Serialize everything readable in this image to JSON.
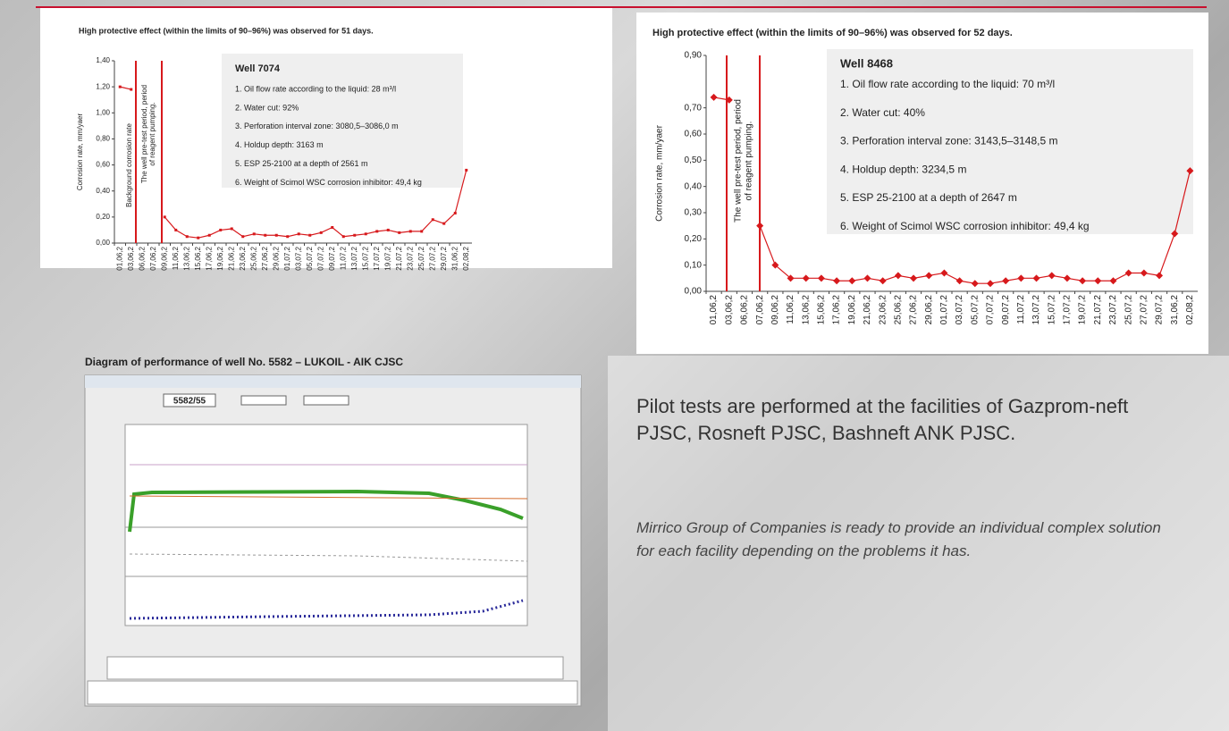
{
  "chart_data": [
    {
      "type": "line",
      "title": "High protective effect (within the limits of 90–96%) was observed for 51 days.",
      "ylabel": "Corrosion rate, mm/yaer",
      "annotations": [
        "Background corrosion rate",
        "The well pre-test period, period",
        "of reagent pumping."
      ],
      "box": {
        "title": "Well 7074",
        "lines": [
          "1. Oil flow rate according to the liquid: 28 m³/l",
          "2. Water cut: 92%",
          "3. Perforation interval zone: 3080,5–3086,0 m",
          "4. Holdup depth: 3163 m",
          "5. ESP 25-2100 at a depth of 2561 m",
          "6. Weight of Scimol WSC corrosion inhibitor: 49,4 kg"
        ]
      },
      "categories": [
        "01,06,2",
        "03,06,2",
        "06,06,2",
        "07,06,2",
        "09,06,2",
        "11,06,2",
        "13,06,2",
        "15,06,2",
        "17,06,2",
        "19,06,2",
        "21,06,2",
        "23,06,2",
        "25,06,2",
        "27,06,2",
        "29,06,2",
        "01,07,2",
        "03,07,2",
        "05,07,2",
        "07,07,2",
        "09,07,2",
        "11,07,2",
        "13,07,2",
        "15,07,2",
        "17,07,2",
        "19,07,2",
        "21,07,2",
        "23,07,2",
        "25,07,2",
        "27,07,2",
        "29,07,2",
        "31,06,2",
        "02,08,2"
      ],
      "values": [
        1.2,
        1.18,
        null,
        null,
        0.2,
        0.1,
        0.05,
        0.04,
        0.06,
        0.1,
        0.11,
        0.05,
        0.07,
        0.06,
        0.06,
        0.05,
        0.07,
        0.06,
        0.08,
        0.12,
        0.05,
        0.06,
        0.07,
        0.09,
        0.1,
        0.08,
        0.09,
        0.09,
        0.18,
        0.15,
        0.23,
        0.56
      ],
      "color": "#d7191c",
      "marker": "square",
      "ylim": [
        0,
        1.4
      ],
      "yticks": [
        {
          "value": 0,
          "label": "0,00"
        },
        {
          "value": 0.2,
          "label": "0,20"
        },
        {
          "value": 0.4,
          "label": "0,40"
        },
        {
          "value": 0.6,
          "label": "0,60"
        },
        {
          "value": 0.8,
          "label": "0,80"
        },
        {
          "value": 1,
          "label": "1,00"
        },
        {
          "value": 1.2,
          "label": "1,20"
        },
        {
          "value": 1.4,
          "label": "1,40"
        }
      ]
    },
    {
      "type": "line",
      "title": "High protective effect (within the limits of 90–96%) was observed for 52 days.",
      "ylabel": "Corrosion rate, mm/yaer",
      "annotations": [
        "The well pre-test period, period",
        "of reagent pumping."
      ],
      "box": {
        "title": "Well 8468",
        "lines": [
          "1. Oil flow rate according to the liquid: 70 m³/l",
          "2. Water cut: 40%",
          "3. Perforation interval zone: 3143,5–3148,5 m",
          "4. Holdup depth: 3234,5 m",
          "5. ESP 25-2100 at a depth of 2647 m",
          "6. Weight of Scimol WSC corrosion inhibitor: 49,4 kg"
        ]
      },
      "categories": [
        "01,06,2",
        "03,06,2",
        "06,06,2",
        "07,06,2",
        "09,06,2",
        "11,06,2",
        "13,06,2",
        "15,06,2",
        "17,06,2",
        "19,06,2",
        "21,06,2",
        "23,06,2",
        "25,06,2",
        "27,06,2",
        "29,06,2",
        "01,07,2",
        "03,07,2",
        "05,07,2",
        "07,07,2",
        "09,07,2",
        "11,07,2",
        "13,07,2",
        "15,07,2",
        "17,07,2",
        "19,07,2",
        "21,07,2",
        "23,07,2",
        "25,07,2",
        "27,07,2",
        "29,07,2",
        "31,06,2",
        "02,08,2"
      ],
      "values": [
        0.74,
        0.73,
        null,
        0.25,
        0.1,
        0.05,
        0.05,
        0.05,
        0.04,
        0.04,
        0.05,
        0.04,
        0.06,
        0.05,
        0.06,
        0.07,
        0.04,
        0.03,
        0.03,
        0.04,
        0.05,
        0.05,
        0.06,
        0.05,
        0.04,
        0.04,
        0.04,
        0.07,
        0.07,
        0.06,
        0.22,
        0.46
      ],
      "color": "#d7191c",
      "marker": "diamond",
      "ylim": [
        0,
        0.9
      ],
      "yticks": [
        {
          "value": 0,
          "label": "0,00"
        },
        {
          "value": 0.1,
          "label": "0,10"
        },
        {
          "value": 0.2,
          "label": "0,20"
        },
        {
          "value": 0.3,
          "label": "0,30"
        },
        {
          "value": 0.4,
          "label": "0,40"
        },
        {
          "value": 0.5,
          "label": "0,50"
        },
        {
          "value": 0.6,
          "label": "0,60"
        },
        {
          "value": 0.7,
          "label": "0,70"
        },
        {
          "value": 0.9,
          "label": "0,90"
        }
      ]
    }
  ],
  "diagram": {
    "title": "Diagram of performance of well No. 5582 – LUKOIL - AIK CJSC",
    "window_label": "5582/55"
  },
  "text": {
    "paragraph": "Pilot tests are performed at the facilities of Gazprom-neft PJSC, Rosneft PJSC, Bashneft ANK PJSC.",
    "note": "Mirrico Group of Companies is ready to  provide an individual complex solution for each facility depending on the problems it has."
  }
}
